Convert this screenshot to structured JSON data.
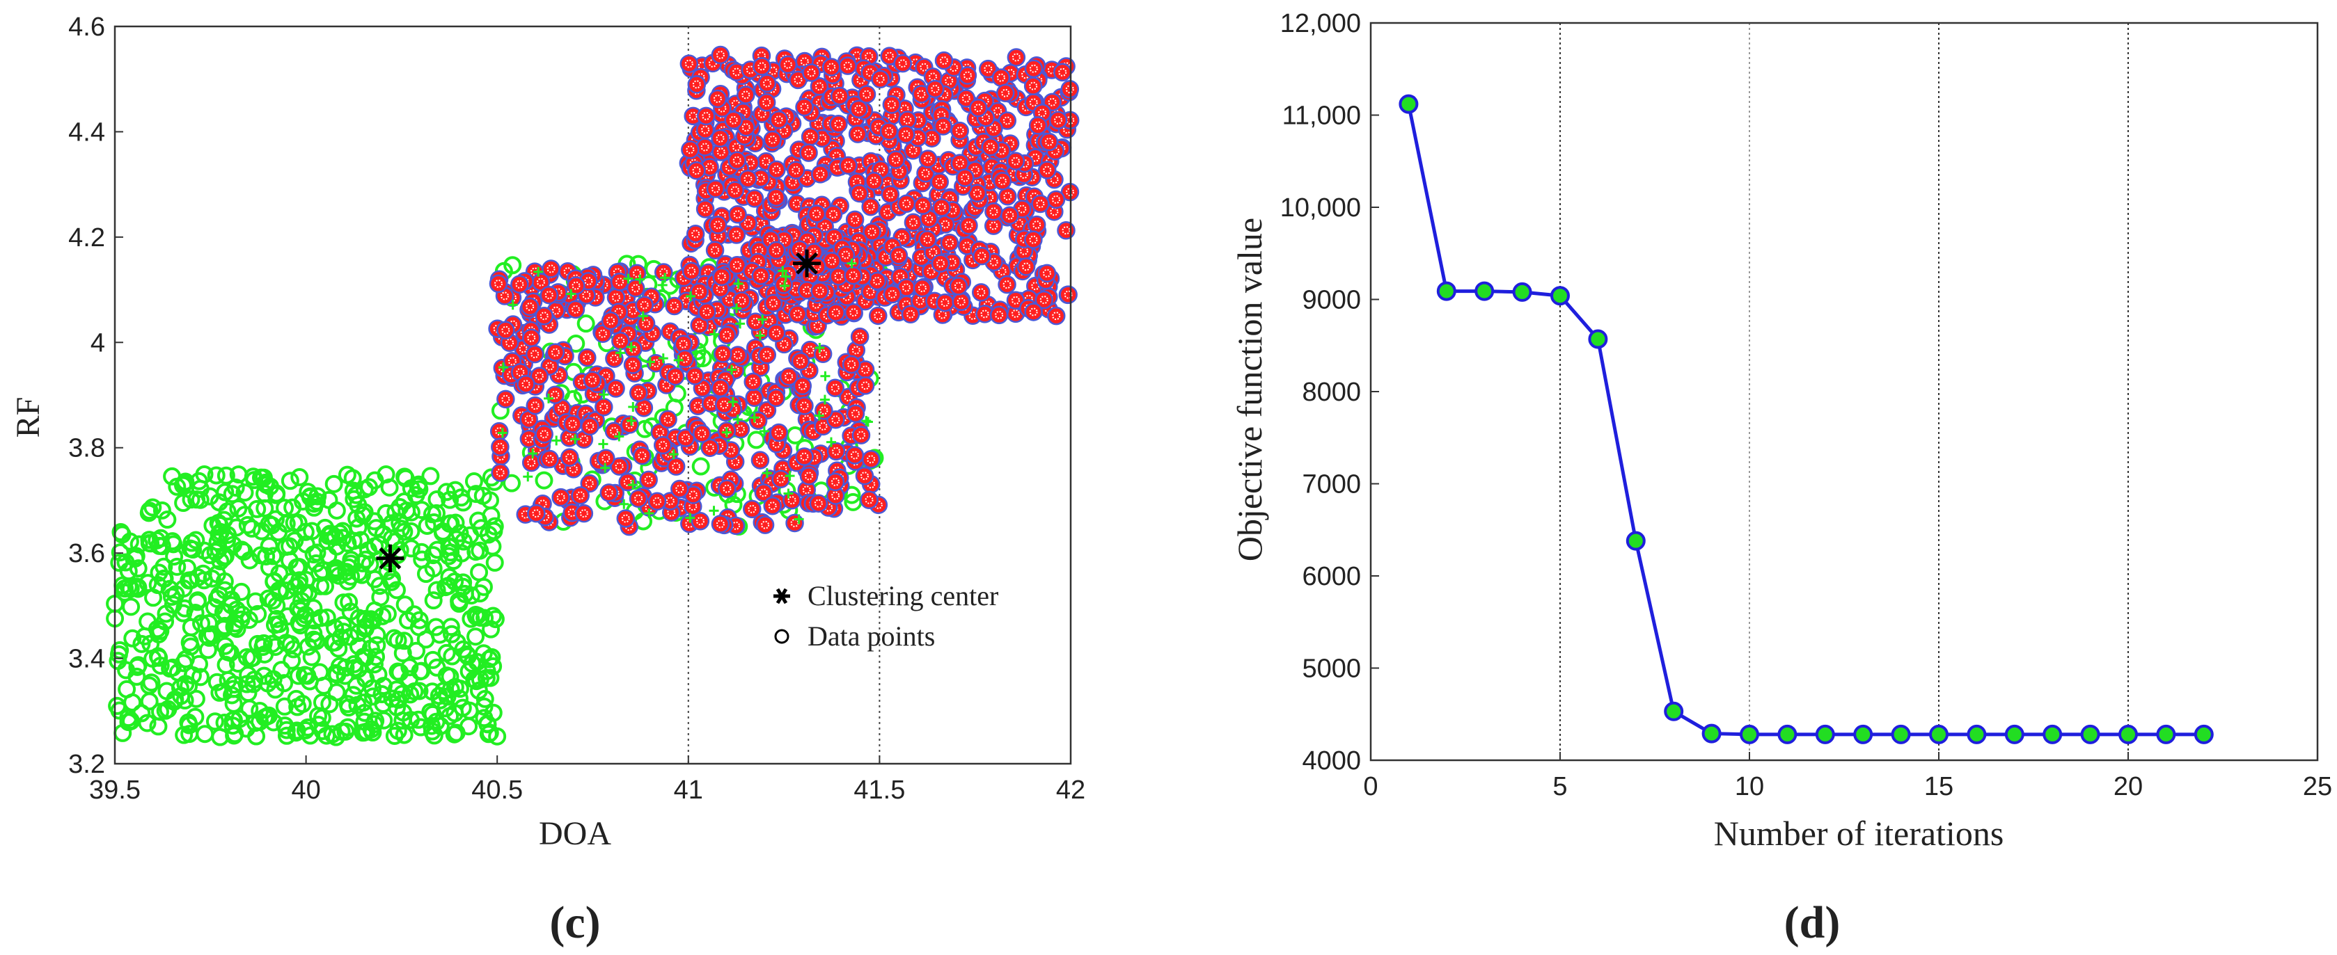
{
  "chart_data": [
    {
      "type": "scatter",
      "panel_label": "(c)",
      "xlabel": "DOA",
      "ylabel": "RF",
      "xlim": [
        39.5,
        42
      ],
      "ylim": [
        3.2,
        4.6
      ],
      "xticks": [
        "39.5",
        "40",
        "40.5",
        "41",
        "41.5",
        "42"
      ],
      "yticks": [
        "3.2",
        "3.4",
        "3.6",
        "3.8",
        "4",
        "4.2",
        "4.4",
        "4.6"
      ],
      "grid": "x-dotted",
      "legend": {
        "placement": "bottom-right",
        "entries": [
          "Clustering center",
          "Data points"
        ]
      },
      "clusters": [
        {
          "color": "#22ee22",
          "regions": [
            {
              "x_range": [
                39.5,
                40.5
              ],
              "y_range": [
                3.25,
                3.75
              ],
              "count": 700
            }
          ],
          "center": [
            40.22,
            3.59
          ]
        },
        {
          "color": "#ff2020",
          "regions": [
            {
              "x_range": [
                40.5,
                41.5
              ],
              "y_range": [
                3.65,
                4.15
              ],
              "count": 420
            },
            {
              "x_range": [
                41.0,
                42.0
              ],
              "y_range": [
                4.05,
                4.55
              ],
              "count": 650
            }
          ],
          "center": [
            41.31,
            4.15
          ]
        }
      ],
      "green_in_red_region": {
        "x_range": [
          40.5,
          41.5
        ],
        "y_range": [
          3.65,
          4.15
        ],
        "count": 130
      }
    },
    {
      "type": "line",
      "panel_label": "(d)",
      "xlabel": "Number of iterations",
      "ylabel": "Objective function value",
      "xlim": [
        0,
        25
      ],
      "ylim": [
        4000,
        12000
      ],
      "xticks": [
        "0",
        "5",
        "10",
        "15",
        "20",
        "25"
      ],
      "yticks": [
        "4000",
        "5000",
        "6000",
        "7000",
        "8000",
        "9000",
        "10,000",
        "11,000",
        "12,000"
      ],
      "grid": "x-dotted",
      "line_color": "#1f1fdd",
      "marker_color": "#22dd22",
      "x": [
        1,
        2,
        3,
        4,
        5,
        6,
        7,
        8,
        9,
        10,
        11,
        12,
        13,
        14,
        15,
        16,
        17,
        18,
        19,
        20,
        21,
        22
      ],
      "y": [
        11120,
        9090,
        9090,
        9080,
        9040,
        8570,
        6380,
        4530,
        4290,
        4280,
        4280,
        4280,
        4280,
        4280,
        4280,
        4280,
        4280,
        4280,
        4280,
        4280,
        4280,
        4280
      ]
    }
  ]
}
